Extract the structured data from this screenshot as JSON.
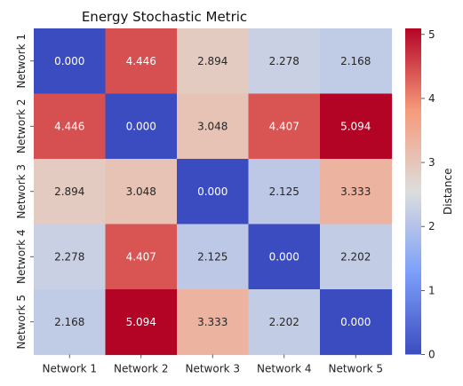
{
  "chart_data": {
    "type": "heatmap",
    "title": "Energy Stochastic Metric",
    "x_categories": [
      "Network 1",
      "Network 2",
      "Network 3",
      "Network 4",
      "Network 5"
    ],
    "y_categories": [
      "Network 1",
      "Network 2",
      "Network 3",
      "Network 4",
      "Network 5"
    ],
    "values": [
      [
        0.0,
        4.446,
        2.894,
        2.278,
        2.168
      ],
      [
        4.446,
        0.0,
        3.048,
        4.407,
        5.094
      ],
      [
        2.894,
        3.048,
        0.0,
        2.125,
        3.333
      ],
      [
        2.278,
        4.407,
        2.125,
        0.0,
        2.202
      ],
      [
        2.168,
        5.094,
        3.333,
        2.202,
        0.0
      ]
    ],
    "annotation_format": "3 decimals",
    "colormap": "coolwarm",
    "colorbar": {
      "label": "Distance",
      "range": [
        0,
        5.094
      ],
      "ticks": [
        0,
        1,
        2,
        3,
        4,
        5
      ]
    },
    "low_color": "#3b4cc0",
    "mid_color": "#dddddd",
    "high_color": "#b40426"
  }
}
